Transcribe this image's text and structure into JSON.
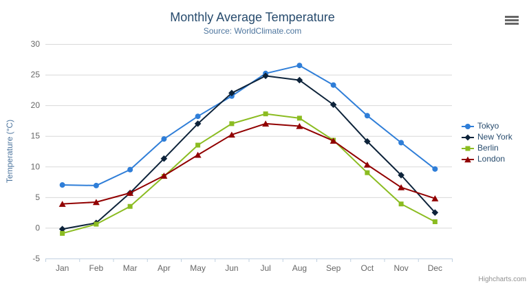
{
  "header": {
    "title": "Monthly Average Temperature",
    "subtitle": "Source: WorldClimate.com"
  },
  "toolbar": {
    "menu_icon": "hamburger-icon"
  },
  "credit": {
    "label": "Highcharts.com"
  },
  "colors": {
    "title": "#274b6d",
    "subtitle": "#4d759e",
    "axis_label": "#666666",
    "axis_line": "#c0d0e0",
    "gridline": "#d8d8d8",
    "legend_text": "#274b6d",
    "credit_text": "#909090"
  },
  "chart_data": {
    "type": "line",
    "title": "Monthly Average Temperature",
    "subtitle": "Source: WorldClimate.com",
    "xlabel": "",
    "ylabel": "Temperature (°C)",
    "categories": [
      "Jan",
      "Feb",
      "Mar",
      "Apr",
      "May",
      "Jun",
      "Jul",
      "Aug",
      "Sep",
      "Oct",
      "Nov",
      "Dec"
    ],
    "series": [
      {
        "name": "Tokyo",
        "color": "#2f7ed8",
        "marker": "circle",
        "values": [
          7.0,
          6.9,
          9.5,
          14.5,
          18.2,
          21.5,
          25.2,
          26.5,
          23.3,
          18.3,
          13.9,
          9.6
        ]
      },
      {
        "name": "New York",
        "color": "#0d233a",
        "marker": "diamond",
        "values": [
          -0.2,
          0.8,
          5.7,
          11.3,
          17.0,
          22.0,
          24.8,
          24.1,
          20.1,
          14.1,
          8.6,
          2.5
        ]
      },
      {
        "name": "Berlin",
        "color": "#8bbc21",
        "marker": "square",
        "values": [
          -0.9,
          0.6,
          3.5,
          8.4,
          13.5,
          17.0,
          18.6,
          17.9,
          14.3,
          9.0,
          3.9,
          1.0
        ]
      },
      {
        "name": "London",
        "color": "#910000",
        "marker": "triangle",
        "values": [
          3.9,
          4.2,
          5.7,
          8.5,
          11.9,
          15.2,
          17.0,
          16.6,
          14.2,
          10.3,
          6.6,
          4.8
        ]
      }
    ],
    "ylim": [
      -5,
      30
    ],
    "ytick_interval": 5,
    "grid": true,
    "legend_position": "right"
  }
}
